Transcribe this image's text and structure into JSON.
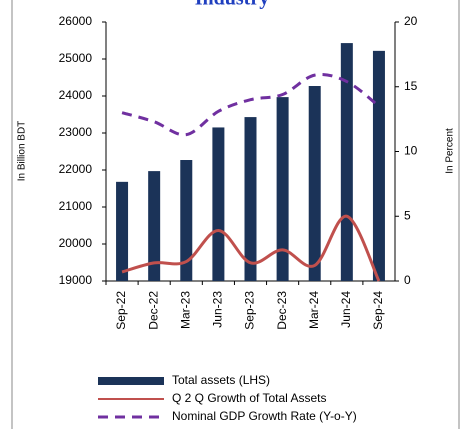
{
  "chart_data": {
    "type": "bar_line",
    "title": "Industry",
    "y_label": "In Billion BDT",
    "y2_label": "In Percent",
    "categories": [
      "Sep-22",
      "Dec-22",
      "Mar-23",
      "Jun-23",
      "Sep-23",
      "Dec-23",
      "Mar-24",
      "Jun-24",
      "Sep-24"
    ],
    "series": [
      {
        "name": "Total assets (LHS)",
        "color": "#1b3358",
        "kind": "bar",
        "values": [
          21680,
          21970,
          22270,
          23150,
          23430,
          23970,
          24270,
          25430,
          25220
        ]
      },
      {
        "name": "Q 2 Q Growth of Total Assets",
        "color": "#c0504d",
        "kind": "line",
        "axis": "y2",
        "values": [
          0.7,
          1.4,
          1.5,
          3.9,
          1.4,
          2.4,
          1.2,
          5.0,
          0
        ]
      },
      {
        "name": "Nominal GDP Growth Rate (Y-o-Y)",
        "color": "#7030a0",
        "kind": "dashed",
        "axis": "y2",
        "values": [
          13.0,
          12.3,
          11.3,
          13.1,
          14.0,
          14.4,
          15.9,
          15.4,
          13.5
        ]
      }
    ],
    "ylim": [
      19000,
      26000
    ],
    "yticks": [
      19000,
      20000,
      21000,
      22000,
      23000,
      24000,
      25000,
      26000
    ],
    "y2lim": [
      0,
      20
    ],
    "y2ticks": [
      0,
      5,
      10,
      15,
      20
    ]
  }
}
